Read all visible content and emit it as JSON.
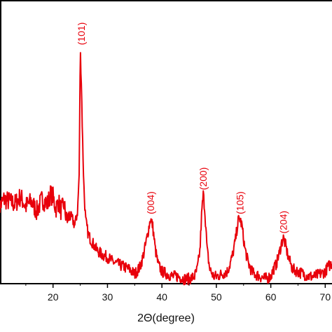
{
  "chart_data": {
    "type": "line",
    "title": "",
    "xlabel": "2Θ(degree)",
    "ylabel": "",
    "xlim": [
      10,
      71.5
    ],
    "ylim": [
      0,
      100
    ],
    "grid": false,
    "x_ticks": [
      20,
      30,
      40,
      50,
      60,
      70
    ],
    "x_tick_labels": [
      "20",
      "30",
      "40",
      "50",
      "60",
      "70"
    ],
    "series_color": "#e8000b",
    "axis_color": "#000000",
    "series": [
      {
        "x": [
          10,
          11,
          12,
          13,
          14,
          15,
          16,
          17,
          18,
          19,
          19.5,
          20,
          20.5,
          21,
          21.5,
          22,
          22.5,
          23,
          23.5,
          24,
          24.5,
          24.8,
          25,
          25.2,
          25.4,
          25.7,
          26,
          26.5,
          27,
          28,
          29,
          30,
          31,
          32,
          33,
          34,
          35,
          36,
          36.5,
          37,
          37.5,
          37.9,
          38.3,
          38.8,
          39.3,
          40,
          41,
          42,
          43,
          44,
          45,
          46,
          46.5,
          47,
          47.3,
          47.6,
          47.9,
          48.3,
          48.8,
          49.5,
          50,
          51,
          52,
          52.5,
          53,
          53.5,
          54,
          54.3,
          54.7,
          55.2,
          55.8,
          56.5,
          57,
          58,
          59,
          60,
          60.5,
          61,
          61.5,
          62,
          62.3,
          62.7,
          63.2,
          64,
          65,
          66,
          67,
          68,
          69,
          70,
          70.5,
          71,
          71.5
        ],
        "y": [
          31,
          35,
          34,
          33,
          36,
          32,
          34,
          30,
          35,
          33,
          37,
          36,
          31,
          34,
          30,
          33,
          26,
          28,
          27,
          24,
          30,
          45,
          97,
          84,
          62,
          38,
          26,
          20,
          18,
          14,
          12,
          11,
          9,
          8,
          7,
          6,
          4,
          7,
          11,
          16,
          22,
          27,
          24,
          14,
          8,
          5,
          4,
          3,
          3,
          2,
          2,
          3,
          6,
          14,
          29,
          37,
          30,
          14,
          6,
          3,
          3,
          4,
          5,
          8,
          12,
          18,
          26,
          27,
          24,
          15,
          9,
          5,
          4,
          3,
          2,
          3,
          6,
          8,
          12,
          17,
          19,
          16,
          11,
          6,
          5,
          4,
          3,
          3,
          4,
          5,
          7,
          8,
          9
        ]
      }
    ],
    "annotations": [
      {
        "text": "(101)",
        "x": 25.2,
        "y": 97
      },
      {
        "text": "(004)",
        "x": 37.9,
        "y": 27
      },
      {
        "text": "(200)",
        "x": 47.6,
        "y": 37
      },
      {
        "text": "(105)",
        "x": 54.3,
        "y": 27
      },
      {
        "text": "(204)",
        "x": 62.3,
        "y": 19
      }
    ]
  }
}
